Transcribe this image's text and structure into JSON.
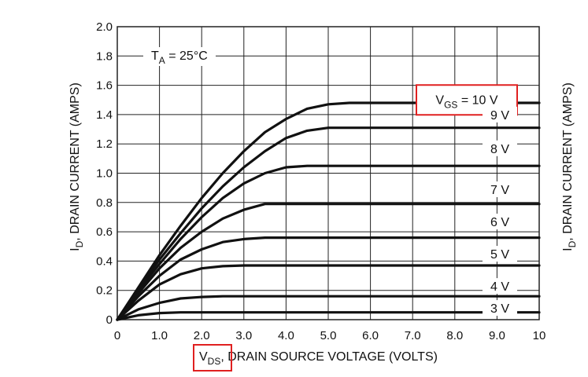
{
  "chart_data": {
    "type": "line",
    "title": "",
    "xlabel": {
      "main": "V",
      "sub": "DS",
      "rest": ", DRAIN SOURCE VOLTAGE (VOLTS)"
    },
    "ylabel": {
      "main": "I",
      "sub": "D",
      "rest": ", DRAIN CURRENT (AMPS)"
    },
    "xlim": [
      0,
      10
    ],
    "ylim": [
      0,
      2.0
    ],
    "xticks": [
      "0",
      "1.0",
      "2.0",
      "3.0",
      "4.0",
      "5.0",
      "6.0",
      "7.0",
      "8.0",
      "9.0",
      "10"
    ],
    "yticks": [
      "0",
      "0.2",
      "0.4",
      "0.6",
      "0.8",
      "1.0",
      "1.2",
      "1.4",
      "1.6",
      "1.8",
      "2.0"
    ],
    "grid": true,
    "annotation": {
      "main": "T",
      "sub": "A",
      "rest": " = 25°C"
    },
    "x": [
      0,
      0.5,
      1.0,
      1.5,
      2.0,
      2.5,
      3.0,
      3.5,
      4.0,
      4.5,
      5.0,
      5.5,
      6.0,
      7.0,
      8.0,
      9.0,
      10.0
    ],
    "series": [
      {
        "name": "10 V",
        "label": {
          "main": "V",
          "sub": "GS",
          "rest": " = 10 V"
        },
        "highlight": true,
        "values": [
          0,
          0.22,
          0.44,
          0.64,
          0.83,
          1.0,
          1.15,
          1.28,
          1.37,
          1.44,
          1.47,
          1.48,
          1.48,
          1.48,
          1.48,
          1.48,
          1.48
        ]
      },
      {
        "name": "9 V",
        "label": {
          "main": "9 V",
          "sub": "",
          "rest": ""
        },
        "values": [
          0,
          0.21,
          0.41,
          0.59,
          0.76,
          0.91,
          1.04,
          1.15,
          1.24,
          1.29,
          1.31,
          1.31,
          1.31,
          1.31,
          1.31,
          1.31,
          1.31
        ]
      },
      {
        "name": "8 V",
        "label": {
          "main": "8 V",
          "sub": "",
          "rest": ""
        },
        "values": [
          0,
          0.2,
          0.38,
          0.55,
          0.7,
          0.83,
          0.93,
          1.0,
          1.04,
          1.05,
          1.05,
          1.05,
          1.05,
          1.05,
          1.05,
          1.05,
          1.05
        ]
      },
      {
        "name": "7 V",
        "label": {
          "main": "7 V",
          "sub": "",
          "rest": ""
        },
        "values": [
          0,
          0.18,
          0.35,
          0.49,
          0.6,
          0.69,
          0.75,
          0.79,
          0.79,
          0.79,
          0.79,
          0.79,
          0.79,
          0.79,
          0.79,
          0.79,
          0.79
        ]
      },
      {
        "name": "6 V",
        "label": {
          "main": "6 V",
          "sub": "",
          "rest": ""
        },
        "values": [
          0,
          0.16,
          0.3,
          0.41,
          0.48,
          0.53,
          0.55,
          0.56,
          0.56,
          0.56,
          0.56,
          0.56,
          0.56,
          0.56,
          0.56,
          0.56,
          0.56
        ]
      },
      {
        "name": "5 V",
        "label": {
          "main": "5 V",
          "sub": "",
          "rest": ""
        },
        "values": [
          0,
          0.13,
          0.24,
          0.31,
          0.35,
          0.365,
          0.37,
          0.37,
          0.37,
          0.37,
          0.37,
          0.37,
          0.37,
          0.37,
          0.37,
          0.37,
          0.37
        ]
      },
      {
        "name": "4 V",
        "label": {
          "main": "4 V",
          "sub": "",
          "rest": ""
        },
        "values": [
          0,
          0.07,
          0.115,
          0.145,
          0.155,
          0.16,
          0.16,
          0.16,
          0.16,
          0.16,
          0.16,
          0.16,
          0.16,
          0.16,
          0.16,
          0.16,
          0.16
        ]
      },
      {
        "name": "3 V",
        "label": {
          "main": "3 V",
          "sub": "",
          "rest": ""
        },
        "values": [
          0,
          0.03,
          0.045,
          0.05,
          0.05,
          0.05,
          0.05,
          0.05,
          0.05,
          0.05,
          0.05,
          0.05,
          0.05,
          0.05,
          0.05,
          0.05,
          0.05
        ]
      }
    ],
    "label_y": [
      1.5,
      1.4,
      1.17,
      0.89,
      0.67,
      0.45,
      0.23,
      0.08
    ]
  },
  "colors": {
    "line": "#111111",
    "grid": "#222222",
    "highlight": "#e02020"
  }
}
